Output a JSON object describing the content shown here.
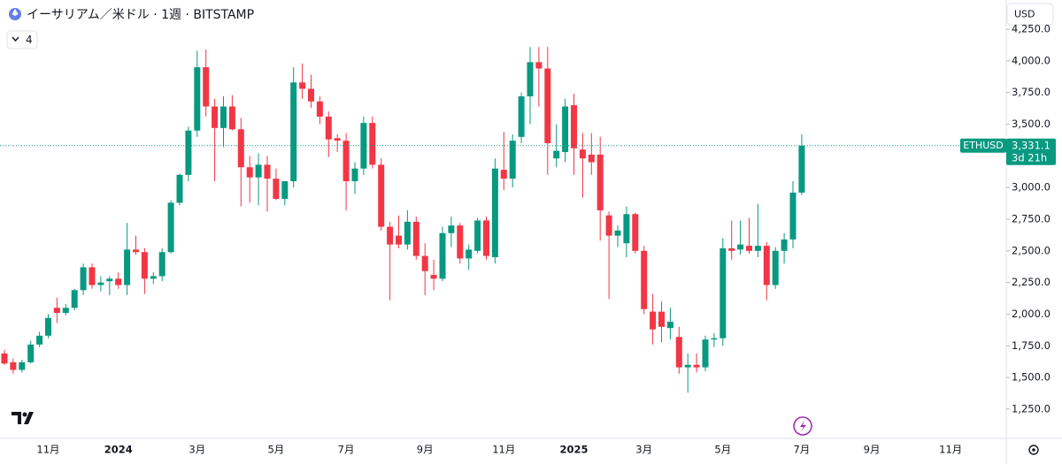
{
  "chart_data": {
    "type": "candlestick",
    "title": "イーサリアム／米ドル · 1週 · BITSTAMP",
    "currency": "USD",
    "indicator_count": "4",
    "categories": [
      null,
      null,
      null,
      null,
      null,
      "11月",
      null,
      null,
      null,
      null,
      null,
      null,
      null,
      "2024",
      null,
      null,
      null,
      null,
      null,
      null,
      null,
      null,
      "3月",
      null,
      null,
      null,
      null,
      null,
      null,
      null,
      null,
      "5月",
      null,
      null,
      null,
      null,
      null,
      null,
      null,
      "7月",
      null,
      null,
      null,
      null,
      null,
      null,
      null,
      null,
      "9月",
      null,
      null,
      null,
      null,
      null,
      null,
      null,
      null,
      "11月",
      null,
      null,
      null,
      null,
      null,
      null,
      null,
      "2025",
      null,
      null,
      null,
      null,
      null,
      null,
      null,
      "3月",
      null,
      null,
      null,
      null,
      null,
      null,
      null,
      null,
      "5月",
      null,
      null,
      null,
      null,
      null,
      null,
      null,
      null,
      "7月",
      null,
      null,
      null,
      null,
      null,
      null,
      null,
      "9月",
      null,
      null,
      null,
      null,
      null,
      null,
      null,
      null,
      "11月"
    ],
    "open": [
      1690,
      1620,
      1560,
      1620,
      1760,
      1830,
      2050,
      2010,
      2050,
      2190,
      2370,
      2230,
      2260,
      2280,
      2230,
      2510,
      2490,
      2280,
      2300,
      2490,
      2880,
      3100,
      3450,
      3950,
      3640,
      3470,
      3640,
      3460,
      3160,
      3080,
      3180,
      3070,
      2910,
      3050,
      3830,
      3780,
      3680,
      3560,
      3390,
      3370,
      3050,
      3150,
      3510,
      3180,
      2690,
      2620,
      2550,
      2730,
      2460,
      2310,
      2280,
      2640,
      2700,
      2440,
      2500,
      2740,
      2450,
      3140,
      3070,
      3400,
      3720,
      3990,
      3940,
      3230,
      3280,
      3650,
      3300,
      3260,
      3260,
      2780,
      2620,
      2560,
      2790,
      2500,
      2020,
      2020,
      1890,
      1820,
      1580,
      1600,
      1580,
      1800,
      1810,
      2520,
      2510,
      2540,
      2500,
      2540,
      2230,
      2500,
      2590,
      2960,
      null,
      null,
      null,
      null,
      null,
      null,
      null,
      null,
      null,
      null,
      null,
      null,
      null,
      null,
      null,
      null,
      null
    ],
    "high": [
      1720,
      1650,
      1640,
      1790,
      1860,
      2000,
      2130,
      2080,
      2200,
      2400,
      2400,
      2300,
      2300,
      2330,
      2720,
      2620,
      2520,
      2330,
      2520,
      2900,
      3110,
      3480,
      4080,
      4090,
      3700,
      3720,
      3730,
      3550,
      3250,
      3270,
      3250,
      3150,
      3050,
      3950,
      3980,
      3890,
      3720,
      3600,
      3420,
      3430,
      3200,
      3560,
      3560,
      3230,
      2730,
      2780,
      2820,
      2770,
      2560,
      2430,
      2690,
      2770,
      2720,
      2550,
      2760,
      2770,
      3230,
      3440,
      3420,
      3750,
      4110,
      4110,
      4110,
      3500,
      3700,
      3740,
      3430,
      3430,
      3400,
      2810,
      2700,
      2850,
      2800,
      2540,
      2160,
      2100,
      2050,
      1900,
      1690,
      1690,
      1830,
      1850,
      2600,
      2740,
      2740,
      2760,
      2870,
      2570,
      2530,
      2640,
      3050,
      3420,
      null,
      null,
      null,
      null,
      null,
      null,
      null,
      null,
      null,
      null,
      null,
      null,
      null,
      null,
      null,
      null,
      null
    ],
    "low": [
      1600,
      1530,
      1540,
      1610,
      1740,
      1810,
      1930,
      1990,
      2030,
      2150,
      2200,
      2180,
      2150,
      2200,
      2150,
      2470,
      2160,
      2240,
      2260,
      2480,
      2860,
      3050,
      3400,
      3560,
      3050,
      3320,
      3450,
      2850,
      2880,
      2860,
      2810,
      2900,
      2860,
      3000,
      3700,
      3630,
      3500,
      3240,
      3280,
      2820,
      2950,
      3100,
      3150,
      2660,
      2110,
      2520,
      2510,
      2430,
      2150,
      2190,
      2260,
      2530,
      2400,
      2350,
      2480,
      2430,
      2400,
      2980,
      3000,
      3350,
      3500,
      3640,
      3100,
      3160,
      3200,
      3100,
      2920,
      3100,
      2580,
      2120,
      2530,
      2450,
      2480,
      2000,
      1760,
      1780,
      1800,
      1530,
      1380,
      1540,
      1550,
      1740,
      1750,
      2430,
      2470,
      2480,
      2450,
      2110,
      2200,
      2400,
      2520,
      2940,
      null,
      null,
      null,
      null,
      null,
      null,
      null,
      null,
      null,
      null,
      null,
      null,
      null,
      null,
      null,
      null,
      null
    ],
    "close": [
      1610,
      1560,
      1620,
      1760,
      1830,
      1970,
      2010,
      2050,
      2190,
      2370,
      2230,
      2250,
      2280,
      2230,
      2510,
      2490,
      2280,
      2300,
      2490,
      2880,
      3100,
      3450,
      3950,
      3640,
      3470,
      3640,
      3460,
      3160,
      3080,
      3180,
      3070,
      2910,
      3050,
      3830,
      3780,
      3680,
      3560,
      3380,
      3370,
      3050,
      3150,
      3510,
      3180,
      2690,
      2550,
      2550,
      2730,
      2460,
      2340,
      2280,
      2640,
      2700,
      2440,
      2510,
      2740,
      2460,
      3150,
      3070,
      3370,
      3720,
      3990,
      3940,
      3350,
      3290,
      3640,
      3310,
      3230,
      3200,
      2820,
      2620,
      2660,
      2790,
      2500,
      2040,
      1880,
      1900,
      1940,
      1580,
      1600,
      1580,
      1800,
      1810,
      2520,
      2500,
      2550,
      2500,
      2540,
      2230,
      2500,
      2590,
      2960,
      3331.1,
      null,
      null,
      null,
      null,
      null,
      null,
      null,
      null,
      null,
      null,
      null,
      null,
      null,
      null,
      null,
      null,
      null
    ],
    "up_color": "#089981",
    "down_color": "#f23645",
    "ylim": [
      1061,
      4481
    ],
    "yticks": [
      {
        "value": 1250,
        "label": "1,250.0"
      },
      {
        "value": 1500,
        "label": "1,500.0"
      },
      {
        "value": 1750,
        "label": "1,750.0"
      },
      {
        "value": 2000,
        "label": "2,000.0"
      },
      {
        "value": 2250,
        "label": "2,250.0"
      },
      {
        "value": 2500,
        "label": "2,500.0"
      },
      {
        "value": 2750,
        "label": "2,750.0"
      },
      {
        "value": 3000,
        "label": "3,000.0"
      },
      {
        "value": 3250,
        "label": "3,250.0"
      },
      {
        "value": 3500,
        "label": "3,500.0"
      },
      {
        "value": 3750,
        "label": "3,750.0"
      },
      {
        "value": 4000,
        "label": "4,000.0"
      },
      {
        "value": 4250,
        "label": "4,250.0"
      }
    ],
    "price_label": {
      "symbol": "ETHUSD",
      "price": "3,331.1",
      "countdown": "3d 21h"
    }
  }
}
